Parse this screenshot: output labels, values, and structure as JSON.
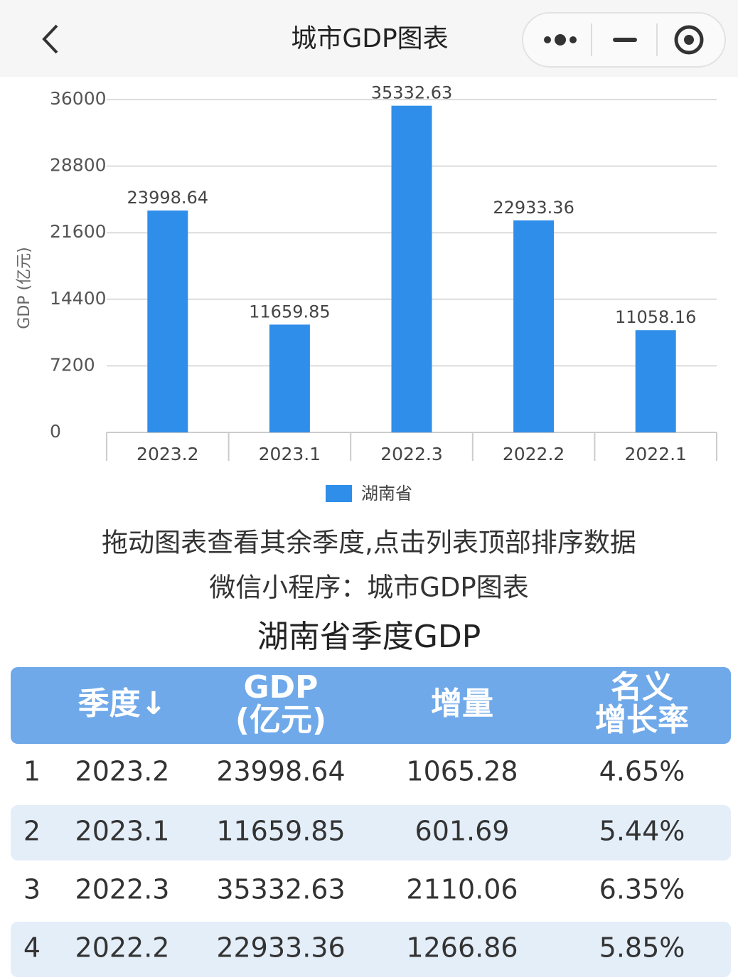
{
  "header": {
    "title": "城市GDP图表"
  },
  "chart_data": {
    "type": "bar",
    "y_label": "GDP (亿元)",
    "categories": [
      "2023.2",
      "2023.1",
      "2022.3",
      "2022.2",
      "2022.1"
    ],
    "series": [
      {
        "name": "湖南省",
        "color": "#2f8ee9",
        "values": [
          23998.64,
          11659.85,
          35332.63,
          22933.36,
          11058.16
        ]
      }
    ],
    "ylim": [
      0,
      36000
    ],
    "yticks": [
      0,
      7200,
      14400,
      21600,
      28800,
      36000
    ],
    "grid": true,
    "legend": "bottom"
  },
  "notes": [
    "拖动图表查看其余季度,点击列表顶部排序数据",
    "微信小程序：城市GDP图表"
  ],
  "table": {
    "title": "湖南省季度GDP",
    "columns": [
      [
        "季度↓"
      ],
      [
        "GDP",
        "(亿元)"
      ],
      [
        "增量"
      ],
      [
        "名义",
        "增长率"
      ]
    ],
    "rows": [
      [
        "1",
        "2023.2",
        "23998.64",
        "1065.28",
        "4.65%"
      ],
      [
        "2",
        "2023.1",
        "11659.85",
        "601.69",
        "5.44%"
      ],
      [
        "3",
        "2022.3",
        "35332.63",
        "2110.06",
        "6.35%"
      ],
      [
        "4",
        "2022.2",
        "22933.36",
        "1266.86",
        "5.85%"
      ]
    ]
  }
}
